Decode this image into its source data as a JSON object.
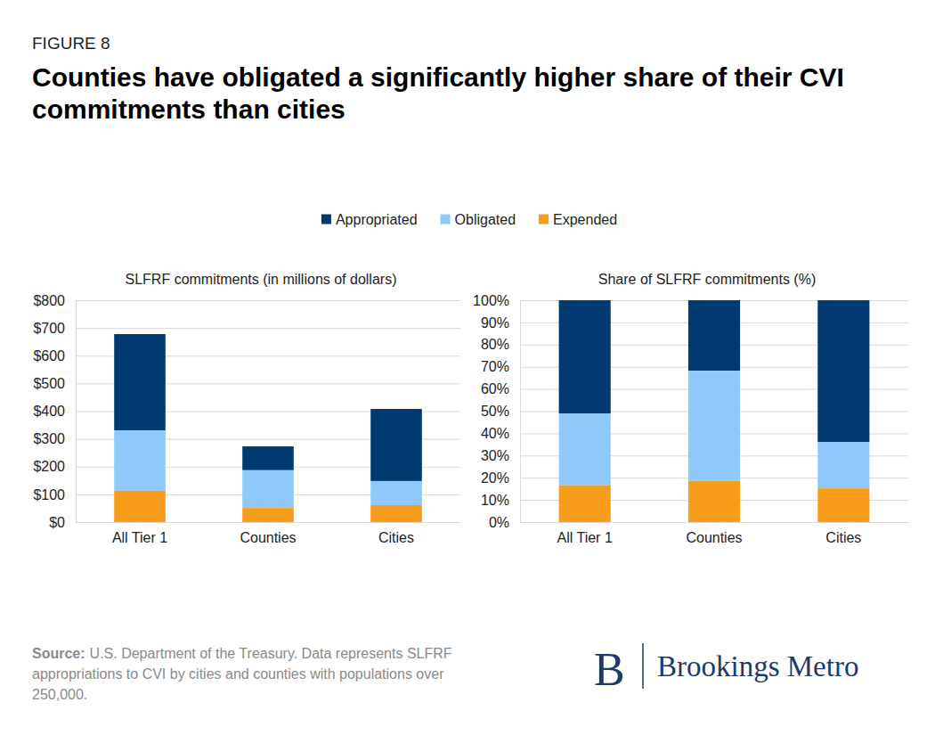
{
  "figure_label": "FIGURE 8",
  "title": [
    "Counties have obligated a significantly higher share of their CVI",
    "commitments than cities"
  ],
  "source": {
    "label": "Source:",
    "lines": [
      "U.S. Department of the Treasury. Data represents SLFRF",
      "appropriations to CVI by cities and counties with populations over",
      "250,000."
    ]
  },
  "brand": {
    "mark": "B",
    "name": "Brookings Metro"
  },
  "chart_data": [
    {
      "type": "bar",
      "stacked": true,
      "grid": true,
      "legend": "top",
      "title": "SLFRF commitments (in millions of dollars)",
      "categories": [
        "All Tier 1",
        "Counties",
        "Cities"
      ],
      "series": [
        {
          "name": "Appropriated",
          "color": "#003a70",
          "values": [
            347,
            86,
            260
          ]
        },
        {
          "name": "Obligated",
          "color": "#8fc9fb",
          "values": [
            218,
            136,
            87
          ]
        },
        {
          "name": "Expended",
          "color": "#f89c1c",
          "values": [
            113,
            51,
            61
          ]
        }
      ],
      "ylim": [
        0,
        800
      ],
      "yticks": [
        {
          "value": 0,
          "label": "$0"
        },
        {
          "value": 100,
          "label": "$100"
        },
        {
          "value": 200,
          "label": "$200"
        },
        {
          "value": 300,
          "label": "$300"
        },
        {
          "value": 400,
          "label": "$400"
        },
        {
          "value": 500,
          "label": "$500"
        },
        {
          "value": 600,
          "label": "$600"
        },
        {
          "value": 700,
          "label": "$700"
        },
        {
          "value": 800,
          "label": "$800"
        }
      ]
    },
    {
      "type": "bar",
      "stacked": true,
      "grid": true,
      "title": "Share of SLFRF commitments (%)",
      "categories": [
        "All Tier 1",
        "Counties",
        "Cities"
      ],
      "series": [
        {
          "color": "#003a70",
          "values": [
            51.1,
            31.8,
            63.9
          ]
        },
        {
          "color": "#8fc9fb",
          "values": [
            32.3,
            49.6,
            20.9
          ]
        },
        {
          "color": "#f89c1c",
          "values": [
            16.6,
            18.6,
            15.2
          ]
        }
      ],
      "ylim": [
        0,
        100
      ],
      "yticks": [
        {
          "value": 0,
          "label": "0%"
        },
        {
          "value": 10,
          "label": "10%"
        },
        {
          "value": 20,
          "label": "20%"
        },
        {
          "value": 30,
          "label": "30%"
        },
        {
          "value": 40,
          "label": "40%"
        },
        {
          "value": 50,
          "label": "50%"
        },
        {
          "value": 60,
          "label": "60%"
        },
        {
          "value": 70,
          "label": "70%"
        },
        {
          "value": 80,
          "label": "80%"
        },
        {
          "value": 90,
          "label": "90%"
        },
        {
          "value": 100,
          "label": "100%"
        }
      ]
    }
  ]
}
